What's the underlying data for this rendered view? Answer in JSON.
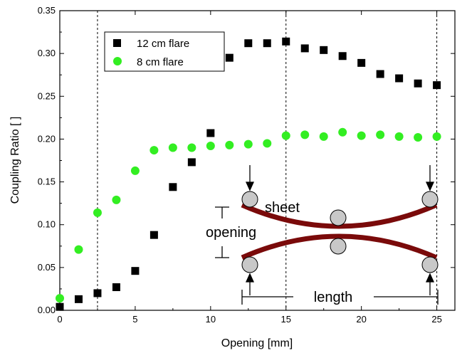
{
  "chart_data": {
    "type": "scatter",
    "xlabel": "Opening [mm]",
    "ylabel": "Coupling Ratio [ ]",
    "xlim": [
      0,
      26.2
    ],
    "ylim": [
      0,
      0.35
    ],
    "xticks": [
      "0",
      "5",
      "10",
      "15",
      "20",
      "25"
    ],
    "yticks": [
      "0.00",
      "0.05",
      "0.10",
      "0.15",
      "0.20",
      "0.25",
      "0.30",
      "0.35"
    ],
    "legend_position": "top-left",
    "vertical_reference_lines": [
      2.5,
      15,
      25
    ],
    "series": [
      {
        "name": "12 cm flare",
        "marker": "square",
        "color": "#000000",
        "x": [
          0,
          1.25,
          2.5,
          3.75,
          5,
          6.25,
          7.5,
          8.75,
          10,
          11.25,
          12.5,
          13.75,
          15,
          16.25,
          17.5,
          18.75,
          20,
          21.25,
          22.5,
          23.75,
          25
        ],
        "y": [
          0.004,
          0.013,
          0.02,
          0.027,
          0.046,
          0.088,
          0.144,
          0.173,
          0.207,
          0.295,
          0.312,
          0.312,
          0.314,
          0.306,
          0.304,
          0.297,
          0.289,
          0.276,
          0.271,
          0.265,
          0.263
        ]
      },
      {
        "name": "8 cm flare",
        "marker": "circle",
        "color": "#33ee22",
        "x": [
          0,
          1.25,
          2.5,
          3.75,
          5,
          6.25,
          7.5,
          8.75,
          10,
          11.25,
          12.5,
          13.75,
          15,
          16.25,
          17.5,
          18.75,
          20,
          21.25,
          22.5,
          23.75,
          25
        ],
        "y": [
          0.014,
          0.071,
          0.114,
          0.129,
          0.163,
          0.187,
          0.19,
          0.19,
          0.192,
          0.193,
          0.194,
          0.195,
          0.204,
          0.205,
          0.203,
          0.208,
          0.204,
          0.205,
          0.203,
          0.202,
          0.203
        ]
      }
    ],
    "inset": {
      "labels": {
        "sheet": "sheet",
        "opening": "opening",
        "length": "length"
      },
      "sheet_color": "#7a0a0a",
      "roller_color": "#c8c8c8"
    }
  }
}
